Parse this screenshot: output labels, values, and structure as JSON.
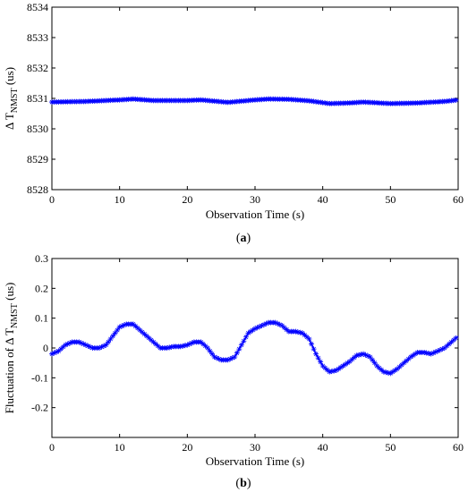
{
  "chart_data": [
    {
      "type": "line",
      "panel_label": "(a)",
      "xlabel": "Observation Time (s)",
      "ylabel_main": "Δ T",
      "ylabel_sub": "NMST",
      "ylabel_unit": " (us)",
      "xlim": [
        0,
        60
      ],
      "ylim": [
        8528,
        8534
      ],
      "xticks": [
        0,
        10,
        20,
        30,
        40,
        50,
        60
      ],
      "yticks": [
        8528,
        8529,
        8530,
        8531,
        8532,
        8533,
        8534
      ],
      "grid": false,
      "series": [
        {
          "color": "#0000ff",
          "marker": "star",
          "points": [
            [
              0,
              8530.88
            ],
            [
              5,
              8530.9
            ],
            [
              10,
              8530.95
            ],
            [
              12,
              8530.98
            ],
            [
              15,
              8530.93
            ],
            [
              20,
              8530.93
            ],
            [
              22,
              8530.95
            ],
            [
              26,
              8530.87
            ],
            [
              30,
              8530.95
            ],
            [
              32,
              8530.98
            ],
            [
              35,
              8530.97
            ],
            [
              38,
              8530.92
            ],
            [
              41,
              8530.83
            ],
            [
              44,
              8530.85
            ],
            [
              46,
              8530.88
            ],
            [
              50,
              8530.83
            ],
            [
              54,
              8530.85
            ],
            [
              58,
              8530.9
            ],
            [
              60,
              8530.95
            ]
          ]
        }
      ]
    },
    {
      "type": "line",
      "panel_label": "(b)",
      "xlabel": "Observation Time (s)",
      "ylabel_main": "Fluctuation of Δ T",
      "ylabel_sub": "NMST",
      "ylabel_unit": " (us)",
      "xlim": [
        0,
        60
      ],
      "ylim": [
        -0.3,
        0.3
      ],
      "xticks": [
        0,
        10,
        20,
        30,
        40,
        50,
        60
      ],
      "yticks": [
        -0.2,
        -0.1,
        0,
        0.1,
        0.2,
        0.3
      ],
      "grid": false,
      "series": [
        {
          "color": "#0000ff",
          "marker": "star",
          "points": [
            [
              0,
              -0.02
            ],
            [
              1,
              -0.01
            ],
            [
              2,
              0.01
            ],
            [
              3,
              0.02
            ],
            [
              4,
              0.02
            ],
            [
              5,
              0.01
            ],
            [
              6,
              0.0
            ],
            [
              7,
              0.0
            ],
            [
              8,
              0.01
            ],
            [
              9,
              0.04
            ],
            [
              10,
              0.07
            ],
            [
              11,
              0.08
            ],
            [
              12,
              0.08
            ],
            [
              13,
              0.06
            ],
            [
              14,
              0.04
            ],
            [
              15,
              0.02
            ],
            [
              16,
              0.0
            ],
            [
              17,
              0.0
            ],
            [
              18,
              0.005
            ],
            [
              19,
              0.005
            ],
            [
              20,
              0.01
            ],
            [
              21,
              0.02
            ],
            [
              22,
              0.02
            ],
            [
              23,
              0.0
            ],
            [
              24,
              -0.03
            ],
            [
              25,
              -0.04
            ],
            [
              26,
              -0.04
            ],
            [
              27,
              -0.03
            ],
            [
              28,
              0.01
            ],
            [
              29,
              0.05
            ],
            [
              30,
              0.065
            ],
            [
              31,
              0.075
            ],
            [
              32,
              0.085
            ],
            [
              33,
              0.085
            ],
            [
              34,
              0.075
            ],
            [
              35,
              0.055
            ],
            [
              36,
              0.055
            ],
            [
              37,
              0.05
            ],
            [
              38,
              0.03
            ],
            [
              39,
              -0.02
            ],
            [
              40,
              -0.06
            ],
            [
              41,
              -0.08
            ],
            [
              42,
              -0.075
            ],
            [
              43,
              -0.06
            ],
            [
              44,
              -0.045
            ],
            [
              45,
              -0.025
            ],
            [
              46,
              -0.02
            ],
            [
              47,
              -0.03
            ],
            [
              48,
              -0.06
            ],
            [
              49,
              -0.08
            ],
            [
              50,
              -0.085
            ],
            [
              51,
              -0.07
            ],
            [
              52,
              -0.05
            ],
            [
              53,
              -0.03
            ],
            [
              54,
              -0.015
            ],
            [
              55,
              -0.015
            ],
            [
              56,
              -0.02
            ],
            [
              57,
              -0.01
            ],
            [
              58,
              0.0
            ],
            [
              59,
              0.02
            ],
            [
              60,
              0.04
            ]
          ]
        }
      ]
    }
  ]
}
